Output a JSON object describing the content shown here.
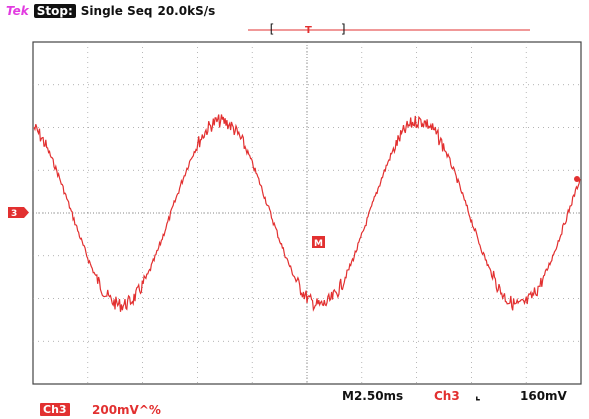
{
  "header": {
    "brand": "Tek",
    "state": "Stop:",
    "mode": "Single Seq",
    "sample_rate": "20.0kS/s"
  },
  "screen": {
    "trigger_marker": "T",
    "ch_ground_marker": "3",
    "math_marker": "M",
    "colors": {
      "trace": "#e23030",
      "grid": "#888888",
      "brand": "#e23be0"
    },
    "trace_cycles": 2.75
  },
  "footer": {
    "timebase": "M2.50ms",
    "trigger_channel": "Ch3",
    "trigger_edge_icon": "falling-edge-icon",
    "trigger_edge_glyph": "⌞",
    "trigger_level": "160mV",
    "channel_badge": "Ch3",
    "channel_scale": "200mV^%"
  }
}
